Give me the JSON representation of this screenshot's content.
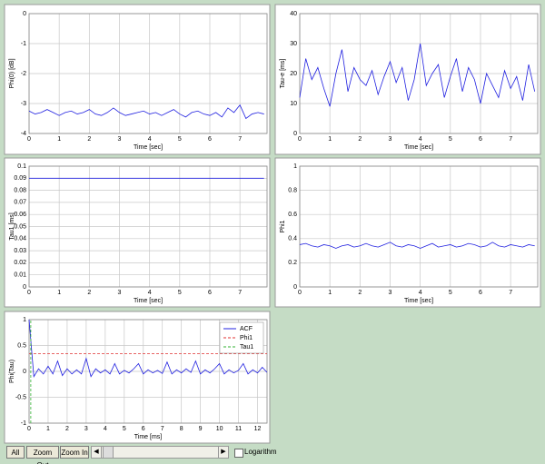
{
  "chart_data": [
    {
      "type": "line",
      "ylabel": "Phi(0) [dB]",
      "xlabel": "Time [sec]",
      "xlim": [
        0,
        7.9
      ],
      "xticks": [
        0,
        1,
        2,
        3,
        4,
        5,
        6,
        7
      ],
      "ylim": [
        -4,
        0
      ],
      "yticks": [
        0,
        -1,
        -2,
        -3,
        -4
      ],
      "grid": true,
      "x": [
        0,
        0.2,
        0.4,
        0.6,
        0.8,
        1,
        1.2,
        1.4,
        1.6,
        1.8,
        2,
        2.2,
        2.4,
        2.6,
        2.8,
        3,
        3.2,
        3.4,
        3.6,
        3.8,
        4,
        4.2,
        4.4,
        4.6,
        4.8,
        5,
        5.2,
        5.4,
        5.6,
        5.8,
        6,
        6.2,
        6.4,
        6.6,
        6.8,
        7,
        7.2,
        7.4,
        7.6,
        7.8
      ],
      "series": [
        {
          "color": "#2020e0",
          "values": [
            -3.25,
            -3.35,
            -3.3,
            -3.2,
            -3.3,
            -3.4,
            -3.3,
            -3.25,
            -3.35,
            -3.3,
            -3.2,
            -3.35,
            -3.4,
            -3.3,
            -3.15,
            -3.3,
            -3.4,
            -3.35,
            -3.3,
            -3.25,
            -3.35,
            -3.3,
            -3.4,
            -3.3,
            -3.2,
            -3.35,
            -3.45,
            -3.3,
            -3.25,
            -3.35,
            -3.4,
            -3.3,
            -3.45,
            -3.15,
            -3.3,
            -3.05,
            -3.5,
            -3.35,
            -3.3,
            -3.35
          ]
        }
      ]
    },
    {
      "type": "line",
      "ylabel": "Tau-e [ms]",
      "xlabel": "Time [sec]",
      "xlim": [
        0,
        7.9
      ],
      "xticks": [
        0,
        1,
        2,
        3,
        4,
        5,
        6,
        7
      ],
      "ylim": [
        0,
        40
      ],
      "yticks": [
        0,
        10,
        20,
        30,
        40
      ],
      "grid": true,
      "x": [
        0,
        0.2,
        0.4,
        0.6,
        0.8,
        1,
        1.2,
        1.4,
        1.6,
        1.8,
        2,
        2.2,
        2.4,
        2.6,
        2.8,
        3,
        3.2,
        3.4,
        3.6,
        3.8,
        4,
        4.2,
        4.4,
        4.6,
        4.8,
        5,
        5.2,
        5.4,
        5.6,
        5.8,
        6,
        6.2,
        6.4,
        6.6,
        6.8,
        7,
        7.2,
        7.4,
        7.6,
        7.8
      ],
      "series": [
        {
          "color": "#2020e0",
          "values": [
            12,
            25,
            18,
            22,
            15,
            9,
            20,
            28,
            14,
            22,
            18,
            16,
            21,
            13,
            19,
            24,
            17,
            22,
            11,
            18,
            30,
            16,
            20,
            23,
            12,
            19,
            25,
            14,
            22,
            18,
            10,
            20,
            16,
            12,
            21,
            15,
            19,
            11,
            23,
            14
          ]
        }
      ]
    },
    {
      "type": "line",
      "ylabel": "Tau1 [ms]",
      "xlabel": "Time [sec]",
      "xlim": [
        0,
        7.9
      ],
      "xticks": [
        0,
        1,
        2,
        3,
        4,
        5,
        6,
        7
      ],
      "ylim": [
        0,
        0.1
      ],
      "yticks": [
        0,
        0.01,
        0.02,
        0.03,
        0.04,
        0.05,
        0.06,
        0.07,
        0.08,
        0.09,
        0.1
      ],
      "grid": true,
      "x": [
        0,
        7.8
      ],
      "series": [
        {
          "color": "#2020e0",
          "values": [
            0.09,
            0.09
          ]
        }
      ]
    },
    {
      "type": "line",
      "ylabel": "Phi1",
      "xlabel": "Time [sec]",
      "xlim": [
        0,
        7.9
      ],
      "xticks": [
        0,
        1,
        2,
        3,
        4,
        5,
        6,
        7
      ],
      "ylim": [
        0,
        1
      ],
      "yticks": [
        0,
        0.2,
        0.4,
        0.6,
        0.8,
        1
      ],
      "grid": true,
      "x": [
        0,
        0.2,
        0.4,
        0.6,
        0.8,
        1,
        1.2,
        1.4,
        1.6,
        1.8,
        2,
        2.2,
        2.4,
        2.6,
        2.8,
        3,
        3.2,
        3.4,
        3.6,
        3.8,
        4,
        4.2,
        4.4,
        4.6,
        4.8,
        5,
        5.2,
        5.4,
        5.6,
        5.8,
        6,
        6.2,
        6.4,
        6.6,
        6.8,
        7,
        7.2,
        7.4,
        7.6,
        7.8
      ],
      "series": [
        {
          "color": "#2020e0",
          "values": [
            0.35,
            0.36,
            0.34,
            0.33,
            0.35,
            0.34,
            0.32,
            0.34,
            0.35,
            0.33,
            0.34,
            0.36,
            0.34,
            0.33,
            0.35,
            0.37,
            0.34,
            0.33,
            0.35,
            0.34,
            0.32,
            0.34,
            0.36,
            0.33,
            0.34,
            0.35,
            0.33,
            0.34,
            0.36,
            0.35,
            0.33,
            0.34,
            0.37,
            0.34,
            0.33,
            0.35,
            0.34,
            0.33,
            0.35,
            0.34
          ]
        }
      ]
    },
    {
      "type": "line",
      "ylabel": "Phi(Tau)",
      "xlabel": "Time [ms]",
      "xlim": [
        0,
        12.5
      ],
      "xticks": [
        0,
        1,
        2,
        3,
        4,
        5,
        6,
        7,
        8,
        9,
        10,
        11,
        12
      ],
      "ylim": [
        -1,
        1
      ],
      "yticks": [
        1,
        0.5,
        0,
        -0.5,
        -1
      ],
      "grid": true,
      "legend": "top-right",
      "x": [
        0,
        0.25,
        0.5,
        0.75,
        1,
        1.25,
        1.5,
        1.75,
        2,
        2.25,
        2.5,
        2.75,
        3,
        3.25,
        3.5,
        3.75,
        4,
        4.25,
        4.5,
        4.75,
        5,
        5.25,
        5.5,
        5.75,
        6,
        6.25,
        6.5,
        6.75,
        7,
        7.25,
        7.5,
        7.75,
        8,
        8.25,
        8.5,
        8.75,
        9,
        9.25,
        9.5,
        9.75,
        10,
        10.25,
        10.5,
        10.75,
        11,
        11.25,
        11.5,
        11.75,
        12,
        12.25,
        12.5
      ],
      "series": [
        {
          "name": "ACF",
          "color": "#2020e0",
          "values": [
            1,
            -0.1,
            0.05,
            -0.05,
            0.1,
            -0.05,
            0.2,
            -0.08,
            0.05,
            -0.05,
            0.03,
            -0.05,
            0.25,
            -0.1,
            0.05,
            -0.03,
            0.03,
            -0.05,
            0.15,
            -0.05,
            0.02,
            -0.03,
            0.05,
            0.15,
            -0.05,
            0.03,
            -0.03,
            0.02,
            -0.04,
            0.18,
            -0.05,
            0.03,
            -0.03,
            0.05,
            -0.02,
            0.2,
            -0.05,
            0.03,
            -0.03,
            0.05,
            0.15,
            -0.05,
            0.03,
            -0.03,
            0.02,
            0.15,
            -0.05,
            0.03,
            -0.03,
            0.08,
            -0.02
          ]
        },
        {
          "name": "Phi1",
          "color": "#e03030",
          "dash": true,
          "x": [
            0,
            12.5
          ],
          "values": [
            0.34,
            0.34
          ]
        },
        {
          "name": "Tau1",
          "color": "#30b030",
          "dash": true,
          "x": [
            0.09,
            0.09
          ],
          "values": [
            -1,
            1
          ]
        }
      ]
    }
  ],
  "toolbar": {
    "buttons": [
      "All",
      "Zoom Out",
      "Zoom In"
    ],
    "checkbox": "Logarithm"
  }
}
